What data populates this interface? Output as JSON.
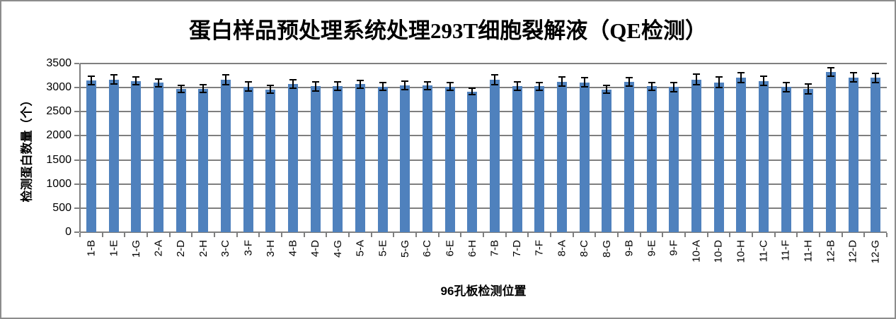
{
  "chart_data": {
    "type": "bar",
    "title": "蛋白样品预处理系统处理293T细胞裂解液（QE检测）",
    "xlabel": "96孔板检测位置",
    "ylabel": "检测蛋白数量（个）",
    "categories": [
      "1-B",
      "1-E",
      "1-G",
      "2-A",
      "2-D",
      "2-H",
      "3-C",
      "3-F",
      "3-H",
      "4-B",
      "4-D",
      "4-G",
      "5-A",
      "5-E",
      "5-G",
      "6-C",
      "6-E",
      "6-H",
      "7-B",
      "7-D",
      "7-F",
      "8-A",
      "8-C",
      "8-G",
      "9-B",
      "9-E",
      "9-F",
      "10-A",
      "10-D",
      "10-H",
      "11-C",
      "11-F",
      "11-H",
      "12-B",
      "12-D",
      "12-G"
    ],
    "values": [
      3150,
      3170,
      3140,
      3100,
      2970,
      2980,
      3160,
      3020,
      2960,
      3080,
      3030,
      3030,
      3070,
      3020,
      3050,
      3040,
      3020,
      2920,
      3160,
      3030,
      3030,
      3120,
      3110,
      2960,
      3120,
      3030,
      3010,
      3170,
      3110,
      3210,
      3140,
      3010,
      2970,
      3320,
      3210,
      3200
    ],
    "errors": [
      90,
      90,
      85,
      80,
      70,
      85,
      105,
      95,
      80,
      90,
      95,
      90,
      85,
      80,
      85,
      85,
      80,
      65,
      100,
      85,
      80,
      95,
      90,
      80,
      85,
      80,
      95,
      105,
      105,
      105,
      100,
      95,
      100,
      90,
      95,
      90
    ],
    "ylim": [
      0,
      3500
    ],
    "yticks": [
      0,
      500,
      1000,
      1500,
      2000,
      2500,
      3000,
      3500
    ],
    "grid": true,
    "legend": false,
    "bar_color": "#4F81BD",
    "grid_color": "#7F7F7F",
    "error_color": "#000000",
    "frame_border_color": "#8C8C8C",
    "background": "#FFFFFF"
  }
}
